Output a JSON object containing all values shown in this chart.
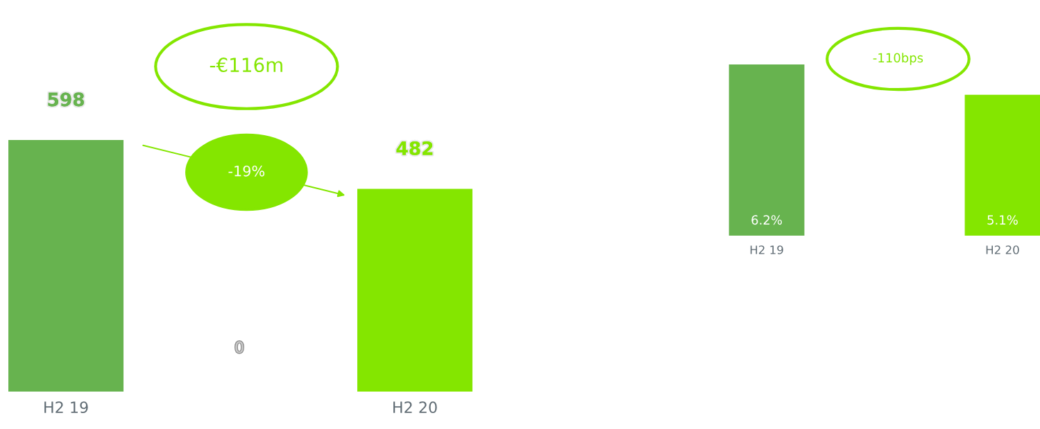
{
  "chart_data": [
    {
      "type": "bar",
      "categories": [
        "H2 19",
        "H2 20"
      ],
      "values": [
        598,
        482
      ],
      "colors": [
        "#67b34f",
        "#84e600"
      ],
      "data_labels": true,
      "grid": false,
      "legend": false,
      "tick_labels": "x",
      "annotations": [
        "-€116m",
        "-19%",
        "0"
      ]
    },
    {
      "type": "bar",
      "categories": [
        "H2 19",
        "H2 20"
      ],
      "values": [
        6.2,
        5.1
      ],
      "colors": [
        "#67b34f",
        "#84e600"
      ],
      "value_labels": [
        "6.2%",
        "5.1%"
      ],
      "grid": false,
      "legend": false,
      "tick_labels": "x",
      "annotations": [
        "-110bps"
      ]
    }
  ]
}
